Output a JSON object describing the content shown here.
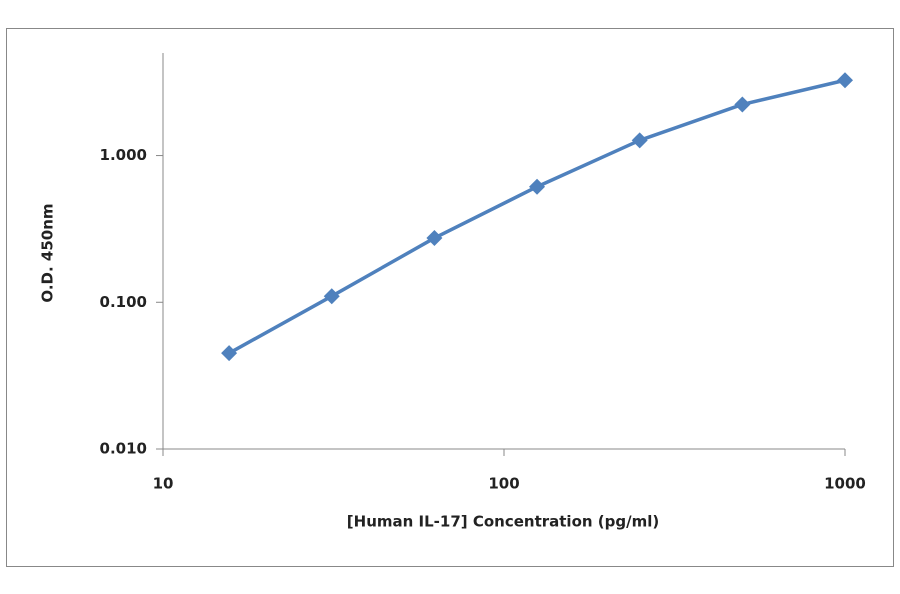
{
  "chart_data": {
    "type": "line",
    "x_label": "[Human IL-17] Concentration (pg/ml)",
    "y_label": "O.D. 450nm",
    "x": [
      15.625,
      31.25,
      62.5,
      125,
      250,
      500,
      1000
    ],
    "series": [
      {
        "name": "O.D. 450nm",
        "color": "#4f81bd",
        "values": [
          0.045,
          0.11,
          0.274,
          0.613,
          1.27,
          2.23,
          3.26
        ]
      }
    ],
    "x_log": true,
    "y_log": true,
    "xlim": [
      10,
      1000
    ],
    "xticks": [
      10,
      100,
      1000
    ],
    "ylim": [
      0.01,
      5
    ],
    "yticks": [
      {
        "value": 0.01,
        "label": "0.010"
      },
      {
        "value": 0.1,
        "label": "0.100"
      },
      {
        "value": 1,
        "label": "1.000"
      }
    ]
  }
}
